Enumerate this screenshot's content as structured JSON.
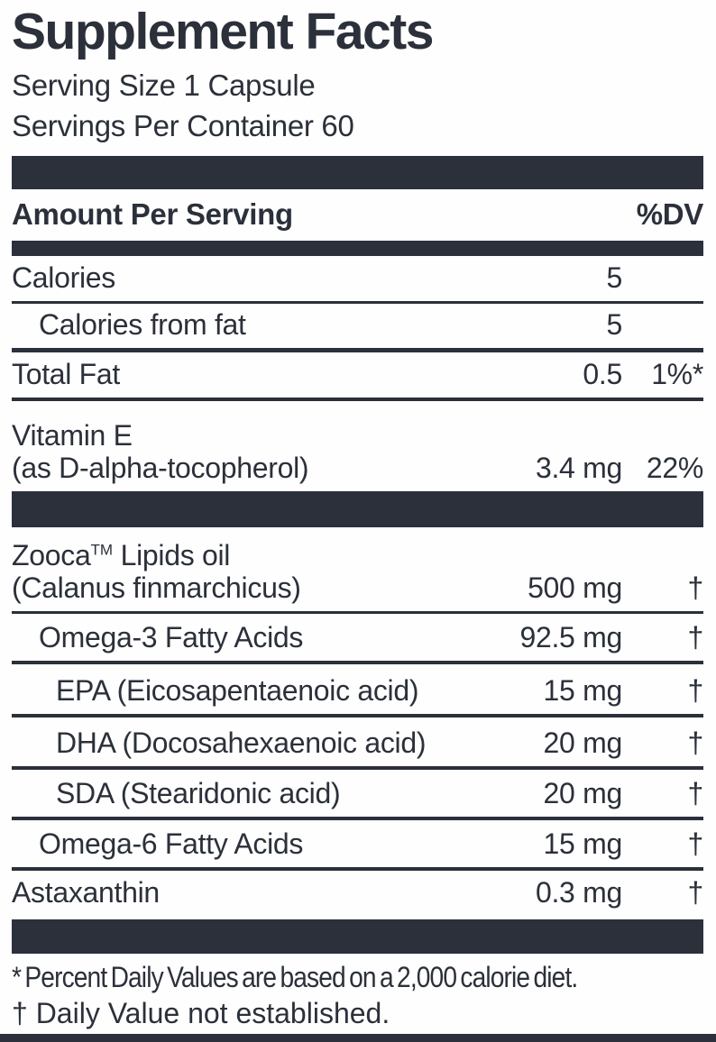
{
  "ink_color": "#2b303a",
  "title": "Supplement Facts",
  "serving": {
    "size": "Serving Size 1 Capsule",
    "per_container": "Servings Per Container 60"
  },
  "header": {
    "amount_label": "Amount Per Serving",
    "dv_label": "%DV"
  },
  "rows": {
    "calories": {
      "name": "Calories",
      "amount": "5",
      "dv": ""
    },
    "calories_from_fat": {
      "name": "Calories from fat",
      "amount": "5",
      "dv": ""
    },
    "total_fat": {
      "name": "Total Fat",
      "amount": "0.5",
      "dv": "1%*"
    },
    "vitamin_e": {
      "line1": "Vitamin E",
      "line2": "(as D-alpha-tocopherol)",
      "amount": "3.4 mg",
      "dv": "22%"
    },
    "zooca": {
      "brand": "Zooca",
      "tm": "TM",
      "rest": " Lipids oil",
      "line2": "(Calanus finmarchicus)",
      "amount": "500 mg",
      "dv": "†"
    },
    "omega3": {
      "name": "Omega-3 Fatty Acids",
      "amount": "92.5 mg",
      "dv": "†"
    },
    "epa": {
      "name": "EPA (Eicosapentaenoic acid)",
      "amount": "15 mg",
      "dv": "†"
    },
    "dha": {
      "name": "DHA (Docosahexaenoic acid)",
      "amount": "20 mg",
      "dv": "†"
    },
    "sda": {
      "name": "SDA (Stearidonic acid)",
      "amount": "20 mg",
      "dv": "†"
    },
    "omega6": {
      "name": "Omega-6 Fatty Acids",
      "amount": "15 mg",
      "dv": "†"
    },
    "astaxanthin": {
      "name": "Astaxanthin",
      "amount": "0.3 mg",
      "dv": "†"
    }
  },
  "footnotes": {
    "dv_note": "* Percent Daily Values are based on a 2,000 calorie diet.",
    "dagger_note": "† Daily Value not established."
  }
}
